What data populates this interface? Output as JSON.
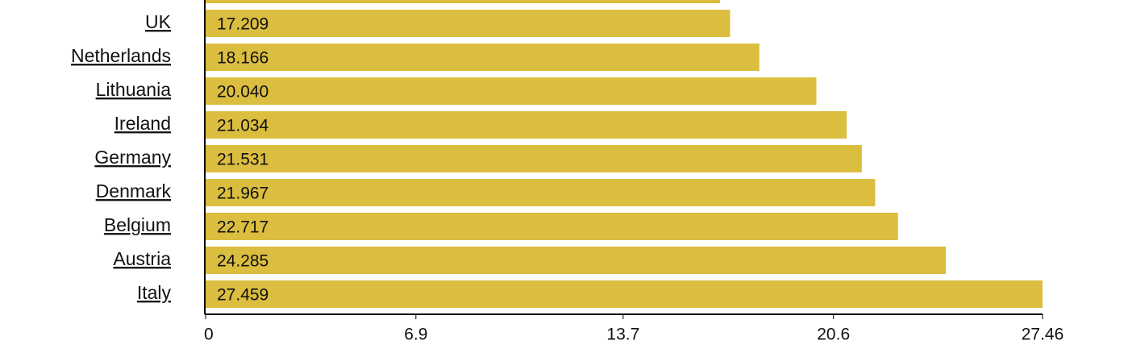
{
  "chart_data": {
    "type": "bar",
    "orientation": "horizontal",
    "categories": [
      null,
      "UK",
      "Netherlands",
      "Lithuania",
      "Ireland",
      "Germany",
      "Denmark",
      "Belgium",
      "Austria",
      "Italy"
    ],
    "values": [
      16.88,
      17.209,
      18.166,
      20.04,
      21.034,
      21.531,
      21.967,
      22.717,
      24.285,
      27.459
    ],
    "value_labels": [
      null,
      "17.209",
      "18.166",
      "20.040",
      "21.034",
      "21.531",
      "21.967",
      "22.717",
      "24.285",
      "27.459"
    ],
    "color": "#dbbd40",
    "xlim": [
      0,
      27.46
    ],
    "xticks": [
      0,
      6.9,
      13.7,
      20.6,
      27.46
    ]
  }
}
